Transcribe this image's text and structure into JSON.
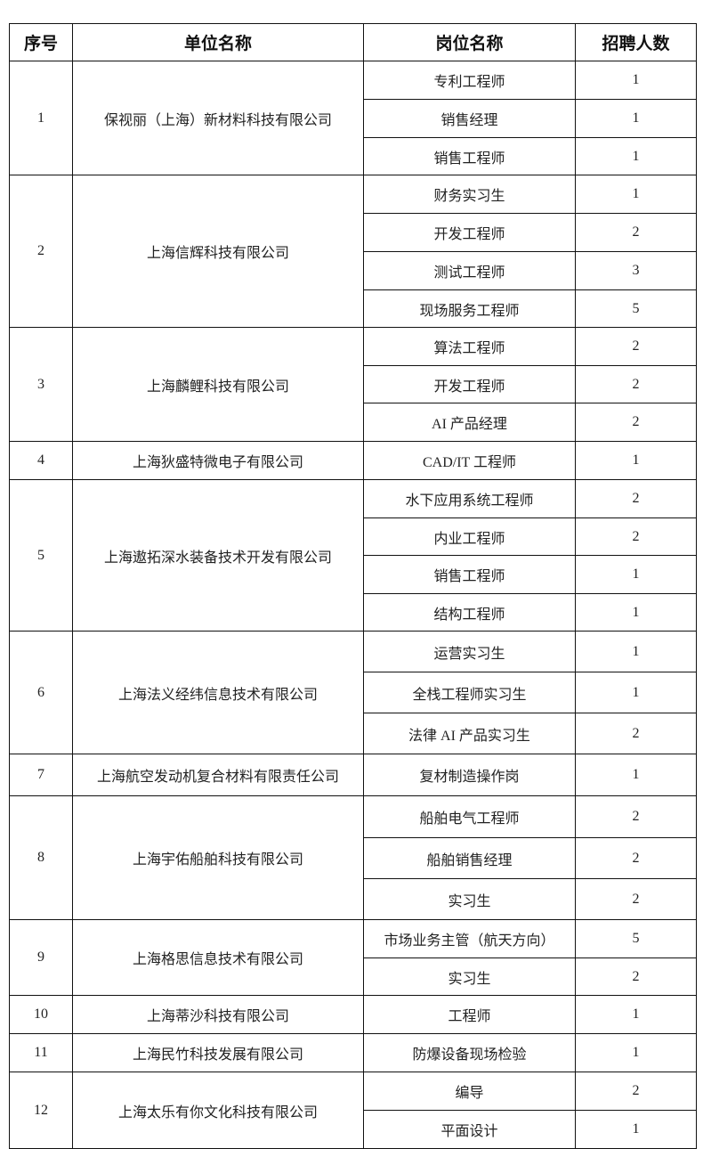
{
  "header": {
    "index": "序号",
    "company": "单位名称",
    "position": "岗位名称",
    "count": "招聘人数"
  },
  "rows": [
    {
      "index": "1",
      "company": "保视丽（上海）新材料科技有限公司",
      "positions": [
        {
          "title": "专利工程师",
          "count": "1"
        },
        {
          "title": "销售经理",
          "count": "1"
        },
        {
          "title": "销售工程师",
          "count": "1"
        }
      ]
    },
    {
      "index": "2",
      "company": "上海信辉科技有限公司",
      "positions": [
        {
          "title": "财务实习生",
          "count": "1"
        },
        {
          "title": "开发工程师",
          "count": "2"
        },
        {
          "title": "测试工程师",
          "count": "3"
        },
        {
          "title": "现场服务工程师",
          "count": "5"
        }
      ]
    },
    {
      "index": "3",
      "company": "上海麟鲤科技有限公司",
      "positions": [
        {
          "title": "算法工程师",
          "count": "2"
        },
        {
          "title": "开发工程师",
          "count": "2"
        },
        {
          "title": "AI 产品经理",
          "count": "2"
        }
      ]
    },
    {
      "index": "4",
      "company": "上海狄盛特微电子有限公司",
      "positions": [
        {
          "title": "CAD/IT 工程师",
          "count": "1"
        }
      ]
    },
    {
      "index": "5",
      "company": "上海遨拓深水装备技术开发有限公司",
      "positions": [
        {
          "title": "水下应用系统工程师",
          "count": "2"
        },
        {
          "title": "内业工程师",
          "count": "2"
        },
        {
          "title": "销售工程师",
          "count": "1"
        },
        {
          "title": "结构工程师",
          "count": "1"
        }
      ]
    },
    {
      "index": "6",
      "company": "上海法义经纬信息技术有限公司",
      "positions": [
        {
          "title": "运营实习生",
          "count": "1"
        },
        {
          "title": "全栈工程师实习生",
          "count": "1"
        },
        {
          "title": "法律 AI 产品实习生",
          "count": "2"
        }
      ]
    },
    {
      "index": "7",
      "company": "上海航空发动机复合材料有限责任公司",
      "positions": [
        {
          "title": "复材制造操作岗",
          "count": "1"
        }
      ]
    },
    {
      "index": "8",
      "company": "上海宇佑船舶科技有限公司",
      "positions": [
        {
          "title": "船舶电气工程师",
          "count": "2"
        },
        {
          "title": "船舶销售经理",
          "count": "2"
        },
        {
          "title": "实习生",
          "count": "2"
        }
      ]
    },
    {
      "index": "9",
      "company": "上海格思信息技术有限公司",
      "positions": [
        {
          "title": "市场业务主管（航天方向）",
          "count": "5"
        },
        {
          "title": "实习生",
          "count": "2"
        }
      ]
    },
    {
      "index": "10",
      "company": "上海蒂沙科技有限公司",
      "positions": [
        {
          "title": "工程师",
          "count": "1"
        }
      ]
    },
    {
      "index": "11",
      "company": "上海民竹科技发展有限公司",
      "positions": [
        {
          "title": "防爆设备现场检验",
          "count": "1"
        }
      ]
    },
    {
      "index": "12",
      "company": "上海太乐有你文化科技有限公司",
      "positions": [
        {
          "title": "编导",
          "count": "2"
        },
        {
          "title": "平面设计",
          "count": "1"
        }
      ]
    }
  ]
}
